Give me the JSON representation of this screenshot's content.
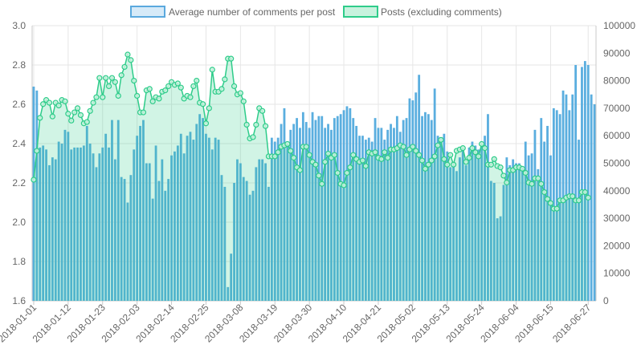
{
  "chart_data": {
    "type": "bar",
    "legend": {
      "position": "top",
      "items": [
        {
          "label": "Average number of comments per post",
          "fill": "#d6eaf8",
          "stroke": "#5aa9de"
        },
        {
          "label": "Posts (excluding comments)",
          "fill": "#c8f2de",
          "stroke": "#2ecc8a"
        }
      ]
    },
    "grid": true,
    "x": {
      "tick_labels": [
        "2018-01-01",
        "2018-01-12",
        "2018-01-23",
        "2018-02-03",
        "2018-02-14",
        "2018-02-25",
        "2018-03-08",
        "2018-03-19",
        "2018-03-30",
        "2018-04-10",
        "2018-04-21",
        "2018-05-02",
        "2018-05-13",
        "2018-05-24",
        "2018-06-04",
        "2018-06-15",
        "2018-06-27"
      ],
      "tick_indices": [
        0,
        11,
        22,
        33,
        44,
        55,
        66,
        77,
        88,
        99,
        110,
        121,
        132,
        143,
        154,
        165,
        177
      ]
    },
    "y_left": {
      "min": 1.6,
      "max": 3.0,
      "ticks": [
        "1.6",
        "1.8",
        "2.0",
        "2.2",
        "2.4",
        "2.6",
        "2.8",
        "3.0"
      ]
    },
    "y_right": {
      "min": 0,
      "max": 100000,
      "ticks": [
        "0",
        "10000",
        "20000",
        "30000",
        "40000",
        "50000",
        "60000",
        "70000",
        "80000",
        "90000",
        "100000"
      ]
    },
    "series": [
      {
        "name": "Average number of comments per post",
        "type": "bar",
        "axis": "left",
        "color": "#5aaedf",
        "values": [
          2.69,
          2.67,
          2.38,
          2.39,
          2.37,
          2.29,
          2.33,
          2.32,
          2.41,
          2.4,
          2.47,
          2.46,
          2.37,
          2.38,
          2.38,
          2.38,
          2.39,
          2.49,
          2.4,
          2.35,
          2.28,
          2.35,
          2.38,
          2.45,
          2.38,
          2.52,
          2.32,
          2.52,
          2.23,
          2.22,
          2.1,
          2.24,
          2.37,
          2.44,
          2.49,
          2.52,
          2.3,
          2.3,
          2.12,
          2.39,
          2.21,
          2.32,
          2.16,
          2.22,
          2.34,
          2.36,
          2.39,
          2.45,
          2.35,
          2.44,
          2.46,
          2.42,
          2.5,
          2.55,
          2.53,
          2.45,
          2.43,
          2.37,
          2.43,
          2.42,
          2.24,
          2.18,
          1.67,
          1.84,
          2.2,
          2.32,
          2.3,
          2.23,
          2.21,
          2.14,
          2.16,
          2.28,
          2.32,
          2.32,
          2.3,
          2.18,
          2.43,
          2.41,
          2.43,
          2.5,
          2.58,
          2.4,
          2.47,
          2.5,
          2.53,
          2.48,
          2.56,
          2.51,
          2.48,
          2.56,
          2.52,
          2.54,
          2.54,
          2.48,
          2.5,
          2.47,
          2.53,
          2.54,
          2.55,
          2.57,
          2.59,
          2.58,
          2.53,
          2.49,
          2.44,
          2.44,
          2.42,
          2.43,
          2.41,
          2.53,
          2.48,
          2.48,
          2.42,
          2.47,
          2.5,
          2.48,
          2.54,
          2.46,
          2.52,
          2.53,
          2.63,
          2.62,
          2.66,
          2.75,
          2.54,
          2.56,
          2.55,
          2.52,
          2.68,
          2.44,
          2.43,
          2.45,
          2.36,
          2.28,
          2.29,
          2.26,
          2.33,
          2.38,
          2.29,
          2.38,
          2.41,
          2.39,
          2.37,
          2.39,
          2.44,
          2.55,
          2.21,
          2.2,
          2.02,
          2.03,
          2.19,
          2.33,
          2.29,
          2.32,
          2.3,
          2.3,
          2.28,
          2.41,
          2.34,
          2.35,
          2.47,
          2.27,
          2.53,
          2.41,
          2.49,
          2.34,
          2.58,
          2.57,
          2.55,
          2.67,
          2.65,
          2.57,
          2.65,
          2.8,
          2.42,
          2.79,
          2.82,
          2.8,
          2.65,
          2.6
        ]
      },
      {
        "name": "Posts (excluding comments)",
        "type": "line",
        "axis": "right",
        "color": "#2ecc8a",
        "fill": "rgba(46,204,138,0.22)",
        "values": [
          44000,
          54500,
          66500,
          71500,
          73000,
          72000,
          67000,
          72000,
          71000,
          73000,
          72500,
          68000,
          65500,
          68500,
          70000,
          67500,
          64500,
          65000,
          69000,
          72000,
          74000,
          81000,
          74000,
          81000,
          78000,
          81000,
          79500,
          74500,
          82000,
          85000,
          89500,
          87500,
          80000,
          74500,
          68500,
          68500,
          76500,
          77000,
          72500,
          74000,
          73500,
          76000,
          76500,
          78000,
          79500,
          78500,
          79000,
          77500,
          73500,
          74500,
          74000,
          78000,
          80000,
          72000,
          71500,
          64500,
          70000,
          84000,
          76000,
          76000,
          77000,
          80500,
          88000,
          88000,
          78000,
          75000,
          75500,
          72500,
          64000,
          59000,
          59500,
          64000,
          70000,
          69000,
          63500,
          52500,
          52500,
          52500,
          54000,
          56000,
          56500,
          57000,
          54500,
          52000,
          48500,
          47500,
          56000,
          56000,
          53000,
          50500,
          49500,
          45500,
          42500,
          50500,
          53500,
          52000,
          53000,
          46500,
          42500,
          42000,
          46500,
          48500,
          53000,
          51500,
          50500,
          51000,
          49000,
          54000,
          53500,
          54000,
          52000,
          51500,
          54000,
          52000,
          55000,
          55000,
          55500,
          56500,
          56000,
          53000,
          55000,
          56000,
          54500,
          53000,
          51000,
          48000,
          49500,
          51000,
          52500,
          56500,
          58500,
          51500,
          49500,
          53000,
          49500,
          54500,
          55000,
          55500,
          50500,
          52000,
          55500,
          54000,
          52500,
          57000,
          55500,
          49500,
          49500,
          51500,
          49000,
          48500,
          45500,
          43000,
          47500,
          47500,
          48500,
          48500,
          48000,
          46500,
          43000,
          42500,
          44500,
          44500,
          42500,
          39500,
          37000,
          35500,
          33500,
          33500,
          36500,
          36500,
          37500,
          38000,
          38000,
          36500,
          36500,
          39500,
          39500,
          37500
        ]
      }
    ]
  }
}
